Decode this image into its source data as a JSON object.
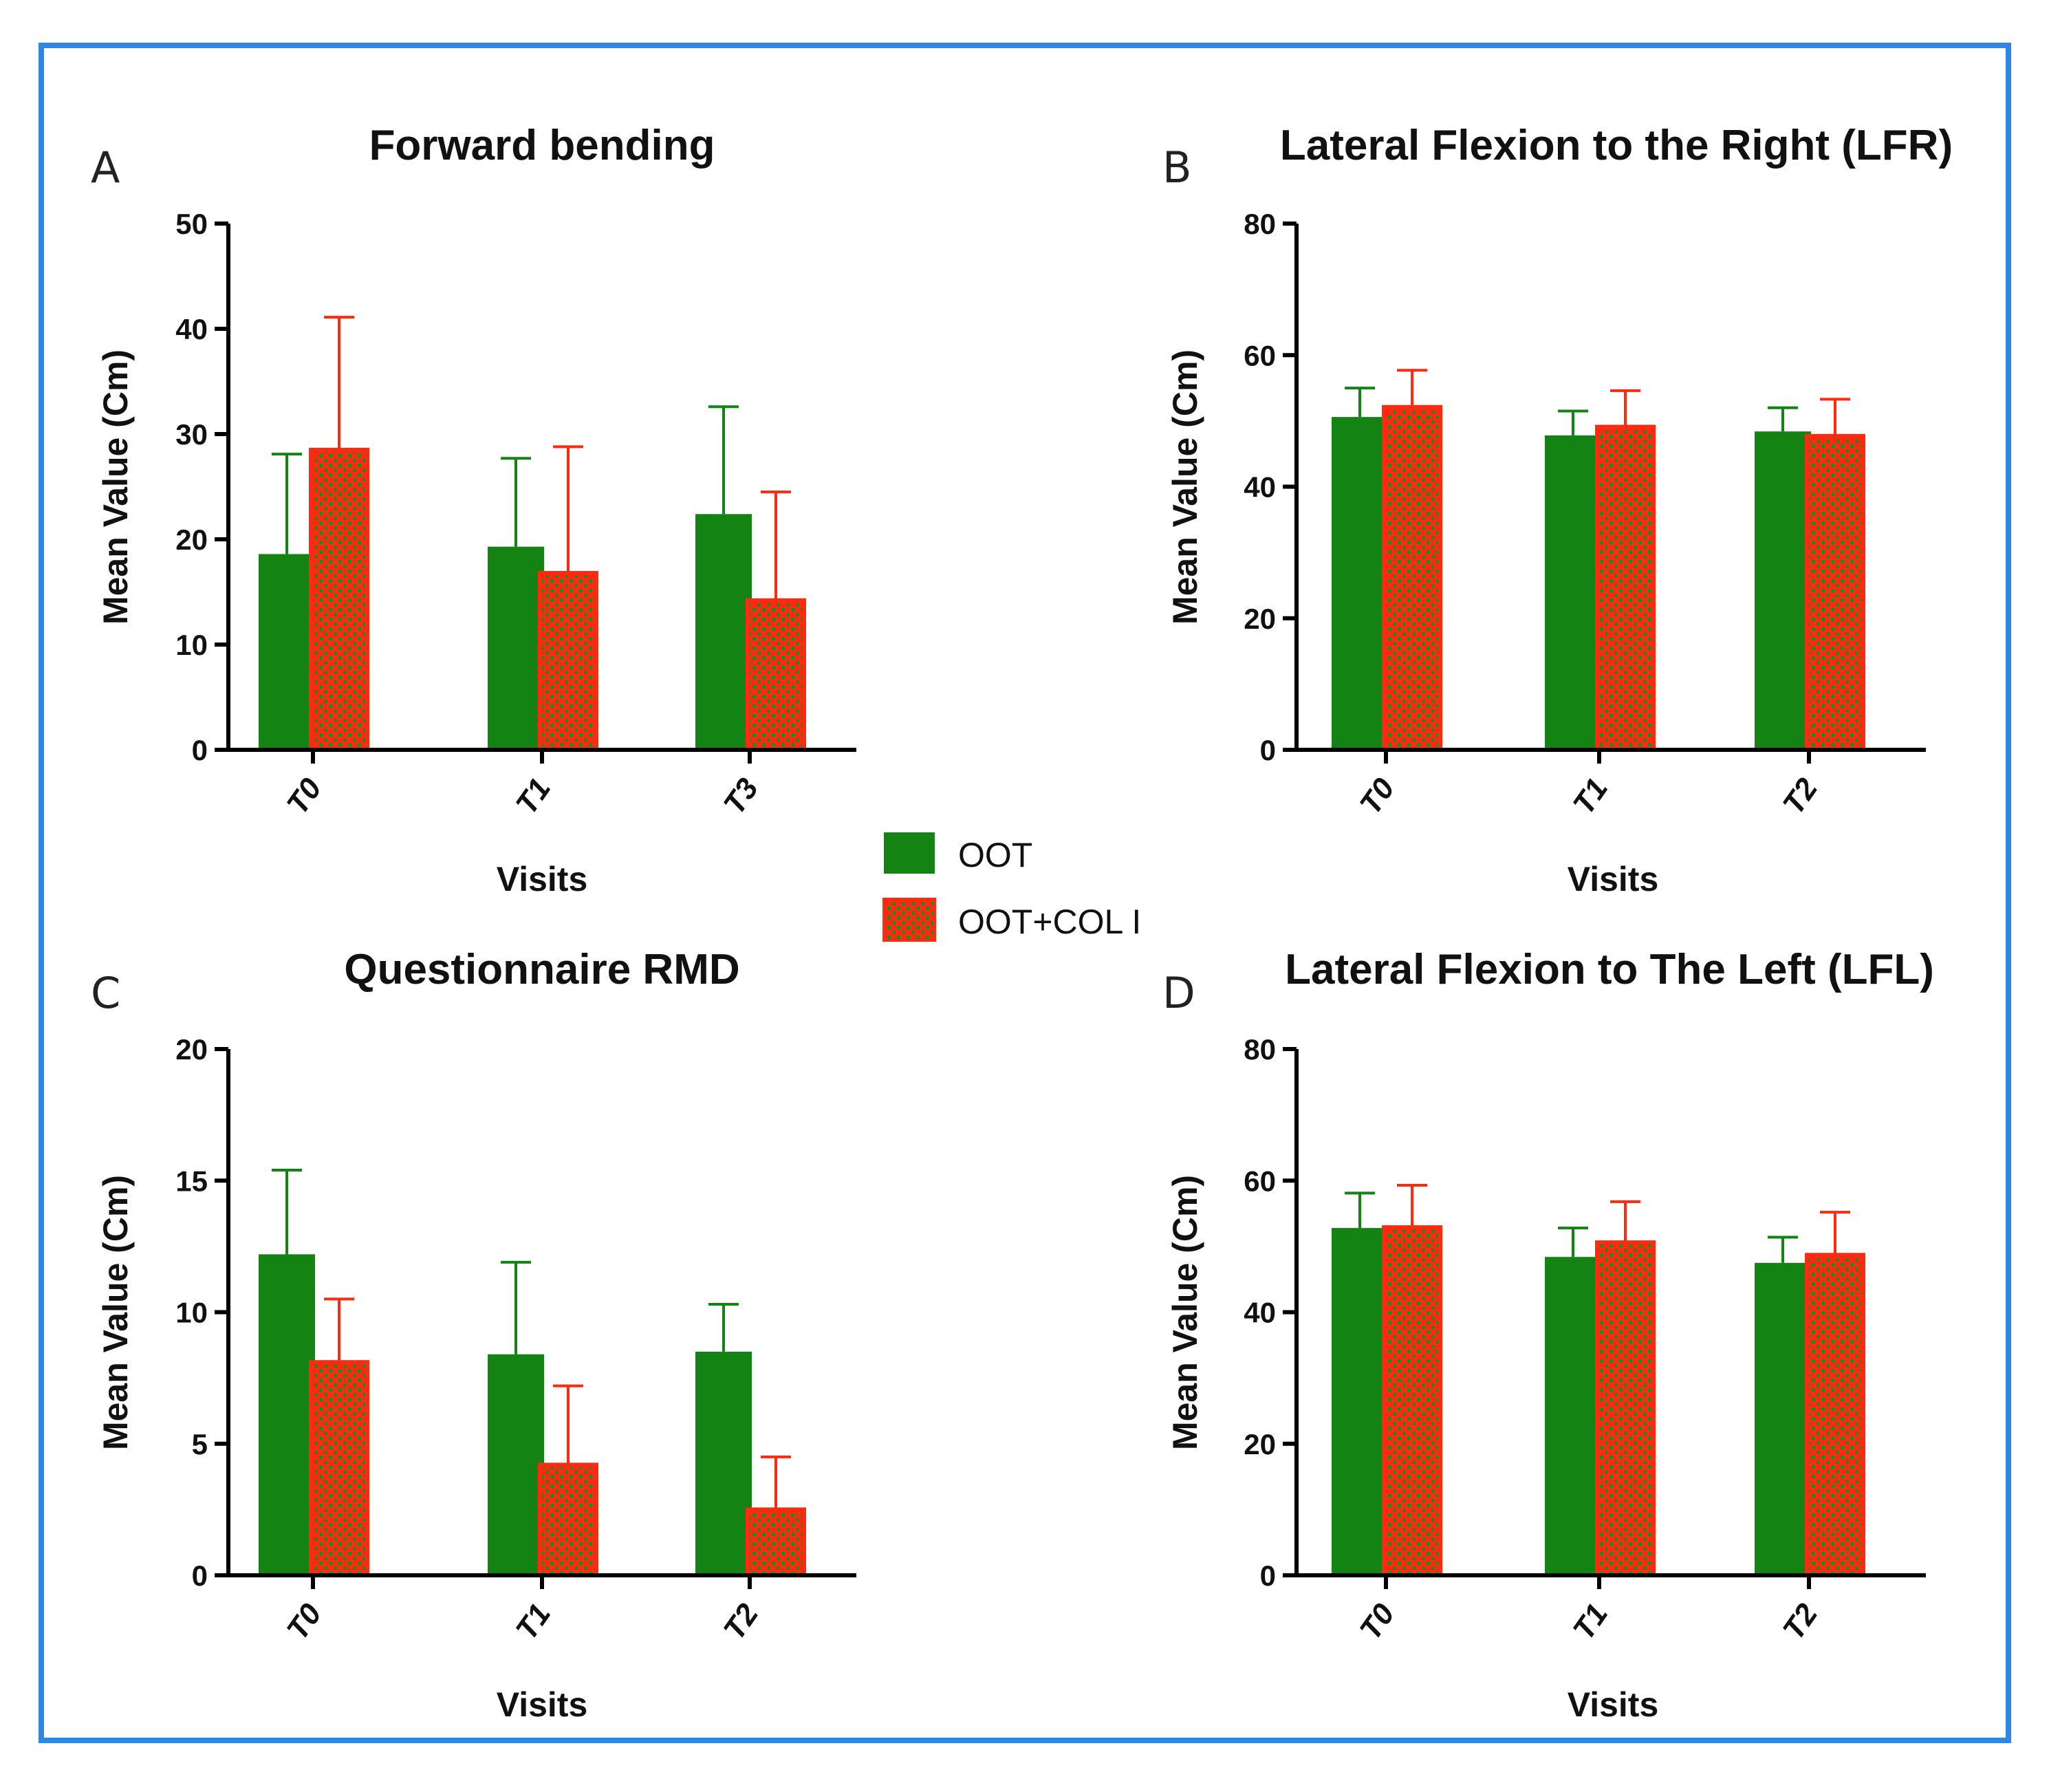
{
  "colors": {
    "series_oot": "#138413",
    "series_oot_col": "#ff2a10",
    "pattern_dot": "#1f8a1f",
    "frame": "#2f86e3",
    "axis": "#000000"
  },
  "legend": {
    "items": [
      {
        "label": "OOT",
        "style": "solid"
      },
      {
        "label": "OOT+COL I",
        "style": "checker"
      }
    ]
  },
  "chart_data": [
    {
      "panel": "A",
      "type": "bar",
      "title": "Forward bending",
      "xlabel": "Visits",
      "ylabel": "Mean Value (Cm)",
      "categories": [
        "T0",
        "T1",
        "T3"
      ],
      "ylim": [
        0,
        50
      ],
      "yticks": [
        "0",
        "10",
        "20",
        "30",
        "40",
        "50"
      ],
      "series": [
        {
          "name": "OOT",
          "values": [
            18.6,
            19.3,
            22.4
          ],
          "errors": [
            9.5,
            8.4,
            10.2
          ]
        },
        {
          "name": "OOT+COL I",
          "values": [
            28.5,
            16.8,
            14.2
          ],
          "errors": [
            12.6,
            12.0,
            10.3
          ]
        }
      ]
    },
    {
      "panel": "B",
      "type": "bar",
      "title": "Lateral Flexion to the Right (LFR)",
      "xlabel": "Visits",
      "ylabel": "Mean Value (Cm)",
      "categories": [
        "T0",
        "T1",
        "T2"
      ],
      "ylim": [
        0,
        80
      ],
      "yticks": [
        "0",
        "20",
        "40",
        "60",
        "80"
      ],
      "series": [
        {
          "name": "OOT",
          "values": [
            50.6,
            47.8,
            48.4
          ],
          "errors": [
            4.4,
            3.7,
            3.6
          ]
        },
        {
          "name": "OOT+COL I",
          "values": [
            52.1,
            49.1,
            47.7
          ],
          "errors": [
            5.6,
            5.5,
            5.6
          ]
        }
      ]
    },
    {
      "panel": "C",
      "type": "bar",
      "title": "Questionnaire RMD",
      "xlabel": "Visits",
      "ylabel": "Mean Value (Cm)",
      "categories": [
        "T0",
        "T1",
        "T2"
      ],
      "ylim": [
        0,
        20
      ],
      "yticks": [
        "0",
        "5",
        "10",
        "15",
        "20"
      ],
      "series": [
        {
          "name": "OOT",
          "values": [
            12.2,
            8.4,
            8.5
          ],
          "errors": [
            3.2,
            3.5,
            1.8
          ]
        },
        {
          "name": "OOT+COL I",
          "values": [
            8.1,
            4.2,
            2.5
          ],
          "errors": [
            2.4,
            3.0,
            2.0
          ]
        }
      ]
    },
    {
      "panel": "D",
      "type": "bar",
      "title": "Lateral Flexion to The Left (LFL)",
      "xlabel": "Visits",
      "ylabel": "Mean Value (Cm)",
      "categories": [
        "T0",
        "T1",
        "T2"
      ],
      "ylim": [
        0,
        80
      ],
      "yticks": [
        "0",
        "20",
        "40",
        "60",
        "80"
      ],
      "series": [
        {
          "name": "OOT",
          "values": [
            52.8,
            48.4,
            47.5
          ],
          "errors": [
            5.3,
            4.4,
            3.9
          ]
        },
        {
          "name": "OOT+COL I",
          "values": [
            52.9,
            50.6,
            48.7
          ],
          "errors": [
            6.4,
            6.2,
            6.5
          ]
        }
      ]
    }
  ]
}
